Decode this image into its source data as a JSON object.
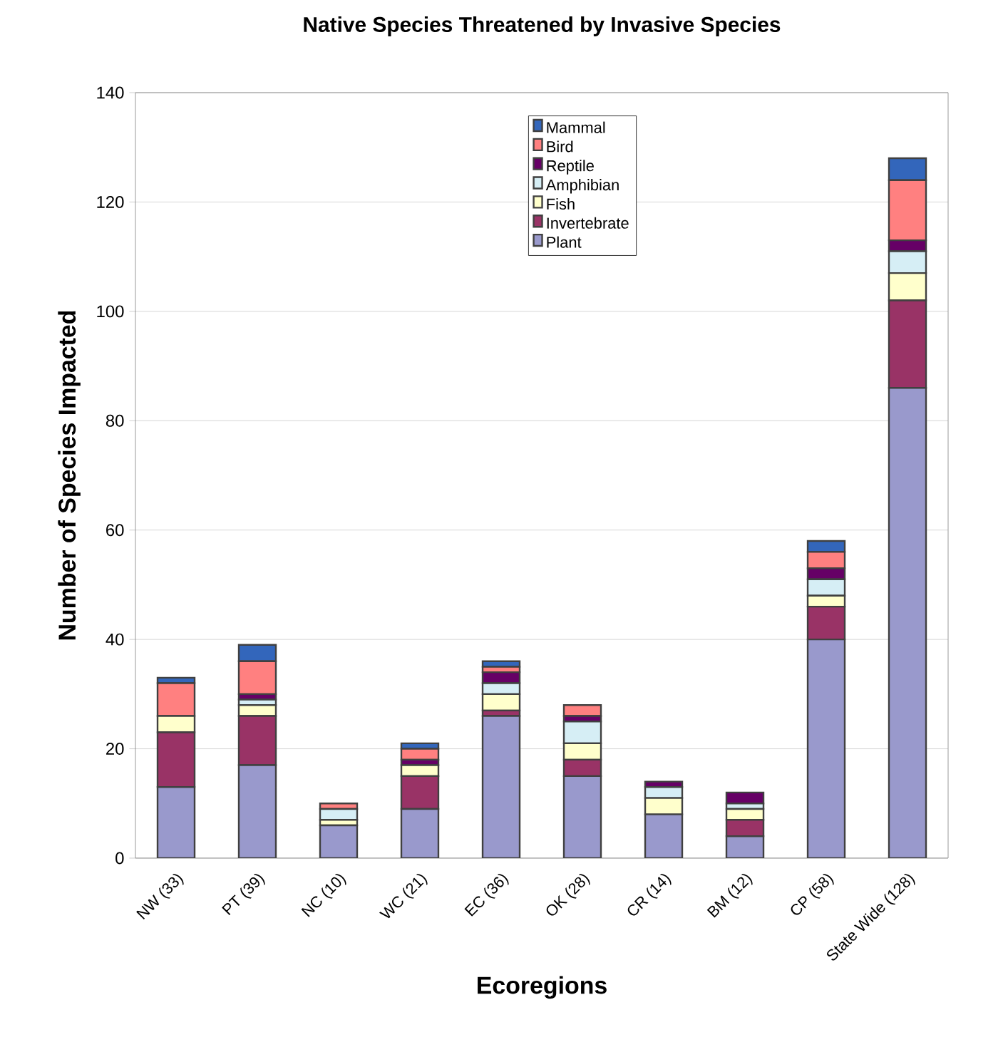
{
  "chart_data": {
    "type": "bar",
    "stacked": true,
    "title": "Native Species Threatened by Invasive Species",
    "xlabel": "Ecoregions",
    "ylabel": "Number of Species Impacted",
    "categories": [
      "NW (33)",
      "PT (39)",
      "NC (10)",
      "WC (21)",
      "EC (36)",
      "OK (28)",
      "CR (14)",
      "BM (12)",
      "CP (58)",
      "State Wide (128)"
    ],
    "series": [
      {
        "name": "Plant",
        "color": "#9999cc",
        "values": [
          13,
          17,
          6,
          9,
          26,
          15,
          8,
          4,
          40,
          86
        ]
      },
      {
        "name": "Invertebrate",
        "color": "#993366",
        "values": [
          10,
          9,
          0,
          6,
          1,
          3,
          0,
          3,
          6,
          16
        ]
      },
      {
        "name": "Fish",
        "color": "#ffffcc",
        "values": [
          3,
          2,
          1,
          2,
          3,
          3,
          3,
          2,
          2,
          5
        ]
      },
      {
        "name": "Amphibian",
        "color": "#d6eef5",
        "values": [
          0,
          1,
          2,
          0,
          2,
          4,
          2,
          1,
          3,
          4
        ]
      },
      {
        "name": "Reptile",
        "color": "#660066",
        "values": [
          0,
          1,
          0,
          1,
          2,
          1,
          1,
          2,
          2,
          2
        ]
      },
      {
        "name": "Bird",
        "color": "#ff8080",
        "values": [
          6,
          6,
          1,
          2,
          1,
          2,
          0,
          0,
          3,
          11
        ]
      },
      {
        "name": "Mammal",
        "color": "#3366bb",
        "values": [
          1,
          3,
          0,
          1,
          1,
          0,
          0,
          0,
          2,
          4
        ]
      }
    ],
    "ylim": [
      0,
      140
    ],
    "yticks": [
      0,
      20,
      40,
      60,
      80,
      100,
      120,
      140
    ],
    "grid": "y",
    "legend": "top"
  }
}
